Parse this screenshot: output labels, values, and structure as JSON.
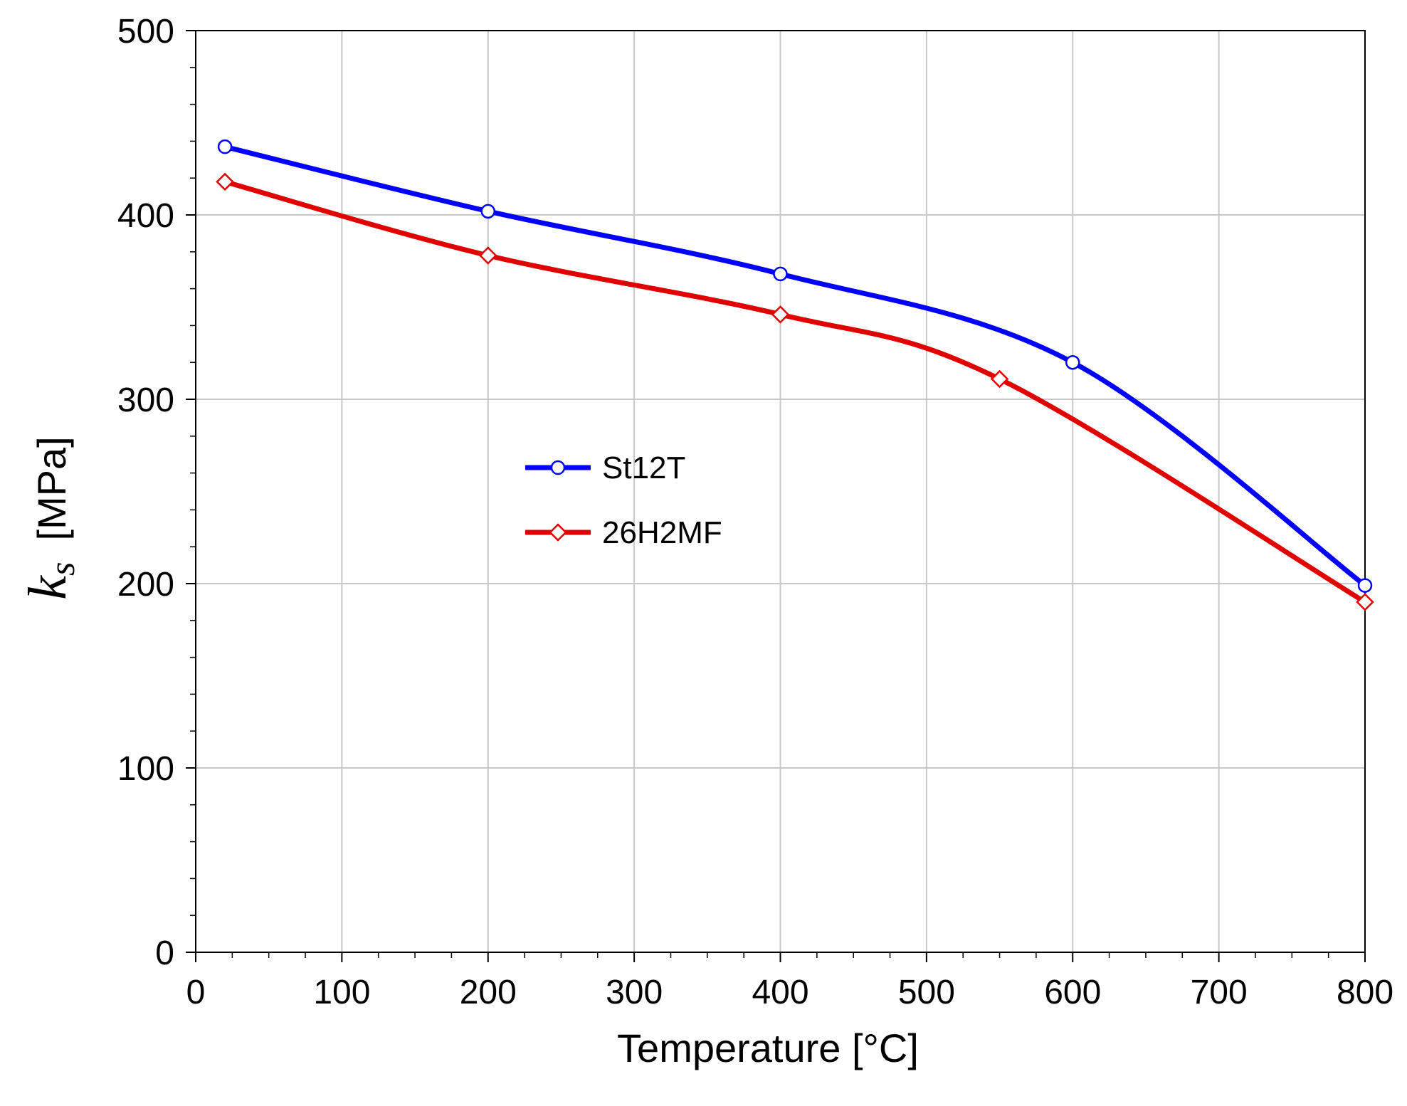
{
  "chart_data": {
    "type": "line",
    "title": "",
    "xlabel": "Temperature [°C]",
    "ylabel": {
      "symbol": "k",
      "subscript": "s",
      "unit": "[MPa]"
    },
    "xlim": [
      0,
      800
    ],
    "ylim": [
      0,
      500
    ],
    "xticks": [
      "0",
      "100",
      "200",
      "300",
      "400",
      "500",
      "600",
      "700",
      "800"
    ],
    "yticks": [
      "0",
      "100",
      "200",
      "300",
      "400",
      "500"
    ],
    "grid": true,
    "legend_position": "center-left",
    "series": [
      {
        "name": "St12T",
        "color": "#0000ff",
        "marker": "circle",
        "x": [
          20,
          200,
          400,
          600,
          800
        ],
        "y": [
          437,
          402,
          368,
          320,
          199
        ]
      },
      {
        "name": "26H2MF",
        "color": "#e00000",
        "marker": "diamond",
        "x": [
          20,
          200,
          400,
          550,
          800
        ],
        "y": [
          418,
          378,
          346,
          311,
          190
        ]
      }
    ]
  }
}
